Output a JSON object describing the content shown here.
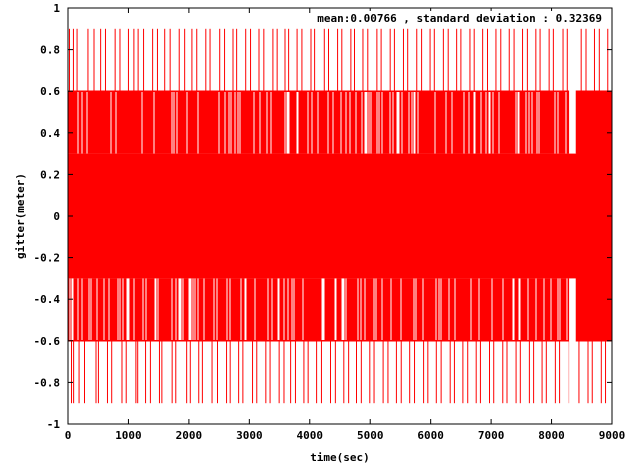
{
  "chart_data": {
    "type": "line",
    "title": "",
    "xlabel": "time(sec)",
    "ylabel": "gitter(meter)",
    "xlim": [
      0,
      9000
    ],
    "ylim": [
      -1,
      1
    ],
    "x_ticks": [
      0,
      1000,
      2000,
      3000,
      4000,
      5000,
      6000,
      7000,
      8000,
      9000
    ],
    "y_ticks": [
      -1,
      -0.8,
      -0.6,
      -0.4,
      -0.2,
      0,
      0.2,
      0.4,
      0.6,
      0.8,
      1
    ],
    "x_tick_labels": [
      "0",
      "1000",
      "2000",
      "3000",
      "4000",
      "5000",
      "6000",
      "7000",
      "8000",
      "9000"
    ],
    "y_tick_labels": [
      "-1",
      "-0.8",
      "-0.6",
      "-0.4",
      "-0.2",
      "0",
      "0.2",
      "0.4",
      "0.6",
      "0.8",
      "1"
    ],
    "annotation": "mean:0.00766 , standard deviation : 0.32369",
    "grid": false,
    "color": "#ff0000",
    "band_levels": [
      -0.3,
      0.3
    ],
    "mid_levels": [
      -0.6,
      0.6
    ],
    "outer_levels": [
      -0.9,
      0.9
    ],
    "spike_times": [
      25,
      60,
      90,
      150,
      240,
      330,
      430,
      470,
      540,
      620,
      690,
      780,
      860,
      930,
      1000,
      1090,
      1120,
      1160,
      1250,
      1330,
      1400,
      1480,
      1520,
      1600,
      1690,
      1750,
      1840,
      1930,
      1990,
      2050,
      2130,
      2190,
      2280,
      2350,
      2440,
      2510,
      2590,
      2650,
      2730,
      2790,
      2860,
      2940,
      3020,
      3090,
      3160,
      3240,
      3310,
      3390,
      3460,
      3540,
      3590,
      3650,
      3730,
      3790,
      3870,
      3940,
      4020,
      4080,
      4160,
      4240,
      4310,
      4390,
      4460,
      4530,
      4610,
      4680,
      4740,
      4820,
      4880,
      4960,
      5030,
      5110,
      5180,
      5260,
      5330,
      5400,
      5480,
      5550,
      5620,
      5700,
      5770,
      5850,
      5920,
      5990,
      6060,
      6140,
      6210,
      6290,
      6360,
      6430,
      6500,
      6580,
      6650,
      6720,
      6790,
      6860,
      6940,
      7010,
      7080,
      7160,
      7230,
      7300,
      7380,
      7450,
      7520,
      7600,
      7670,
      7740,
      7810,
      7880,
      7960,
      8030,
      8100,
      8190,
      8260,
      8420,
      8490,
      8570,
      8640,
      8710,
      8790,
      8860,
      8930
    ]
  }
}
